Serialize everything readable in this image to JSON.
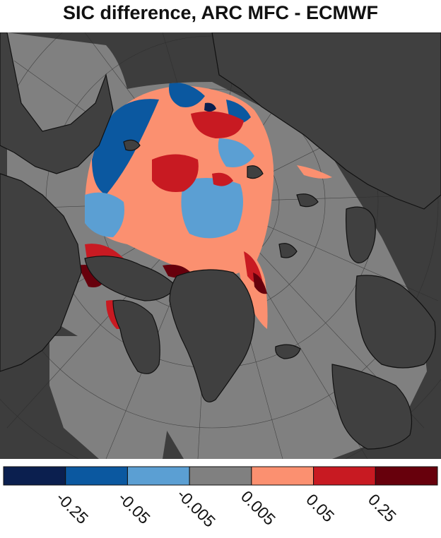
{
  "title": "SIC difference, ARC MFC - ECMWF",
  "colorbar": {
    "bins": [
      {
        "color": "#0b1f4f"
      },
      {
        "color": "#0b58a0"
      },
      {
        "color": "#5b9fd3"
      },
      {
        "color": "#808080"
      },
      {
        "color": "#fb9070"
      },
      {
        "color": "#c81a22"
      },
      {
        "color": "#67000c"
      }
    ],
    "tick_labels": [
      "-0.25",
      "-0.05",
      "-0.005",
      "0.005",
      "0.05",
      "0.25"
    ]
  },
  "map": {
    "projection": "north-polar stereographic",
    "land_color": "#404040",
    "ocean_neutral_color": "#808080",
    "outside_domain_color": "#3d3d3d"
  }
}
